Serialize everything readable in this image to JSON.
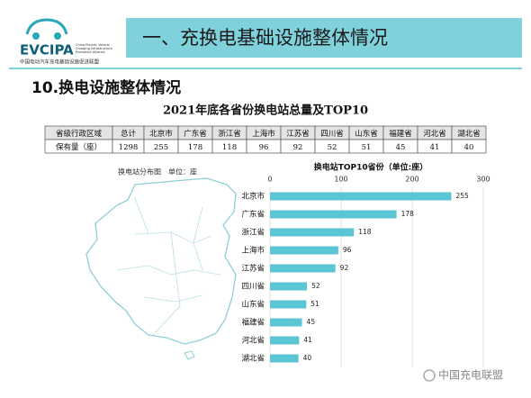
{
  "header": {
    "logo": "EVCIPA",
    "logo_en": "China Electric Vehicle Charging Infrastructure Promotion Alliance",
    "logo_cn": "中国电动汽车充电基础设施促进联盟",
    "title": "一、充换电基础设施整体情况"
  },
  "section_title": "10.换电设施整体情况",
  "table": {
    "title": "2021年底各省份换电站总量及TOP10",
    "header": [
      "省级行政区域",
      "总计",
      "北京市",
      "广东省",
      "浙江省",
      "上海市",
      "江苏省",
      "四川省",
      "山东省",
      "福建省",
      "河北省",
      "湖北省"
    ],
    "rows": [
      [
        "保有量（座）",
        "1298",
        "255",
        "178",
        "118",
        "96",
        "92",
        "52",
        "51",
        "45",
        "41",
        "40"
      ]
    ]
  },
  "map_title": "换电站分布图　单位：座",
  "chart_data": {
    "type": "hbar",
    "title": "换电站TOP10省份（单位:座）",
    "categories": [
      "北京市",
      "广东省",
      "浙江省",
      "上海市",
      "江苏省",
      "四川省",
      "山东省",
      "福建省",
      "河北省",
      "湖北省"
    ],
    "values": [
      255,
      178,
      118,
      96,
      92,
      52,
      51,
      45,
      41,
      40
    ],
    "color": "#5bc5d3",
    "xlim": [
      0,
      300
    ],
    "xticks": [
      0,
      100,
      200,
      300
    ],
    "grid": true
  },
  "watermark": "中国充电联盟"
}
